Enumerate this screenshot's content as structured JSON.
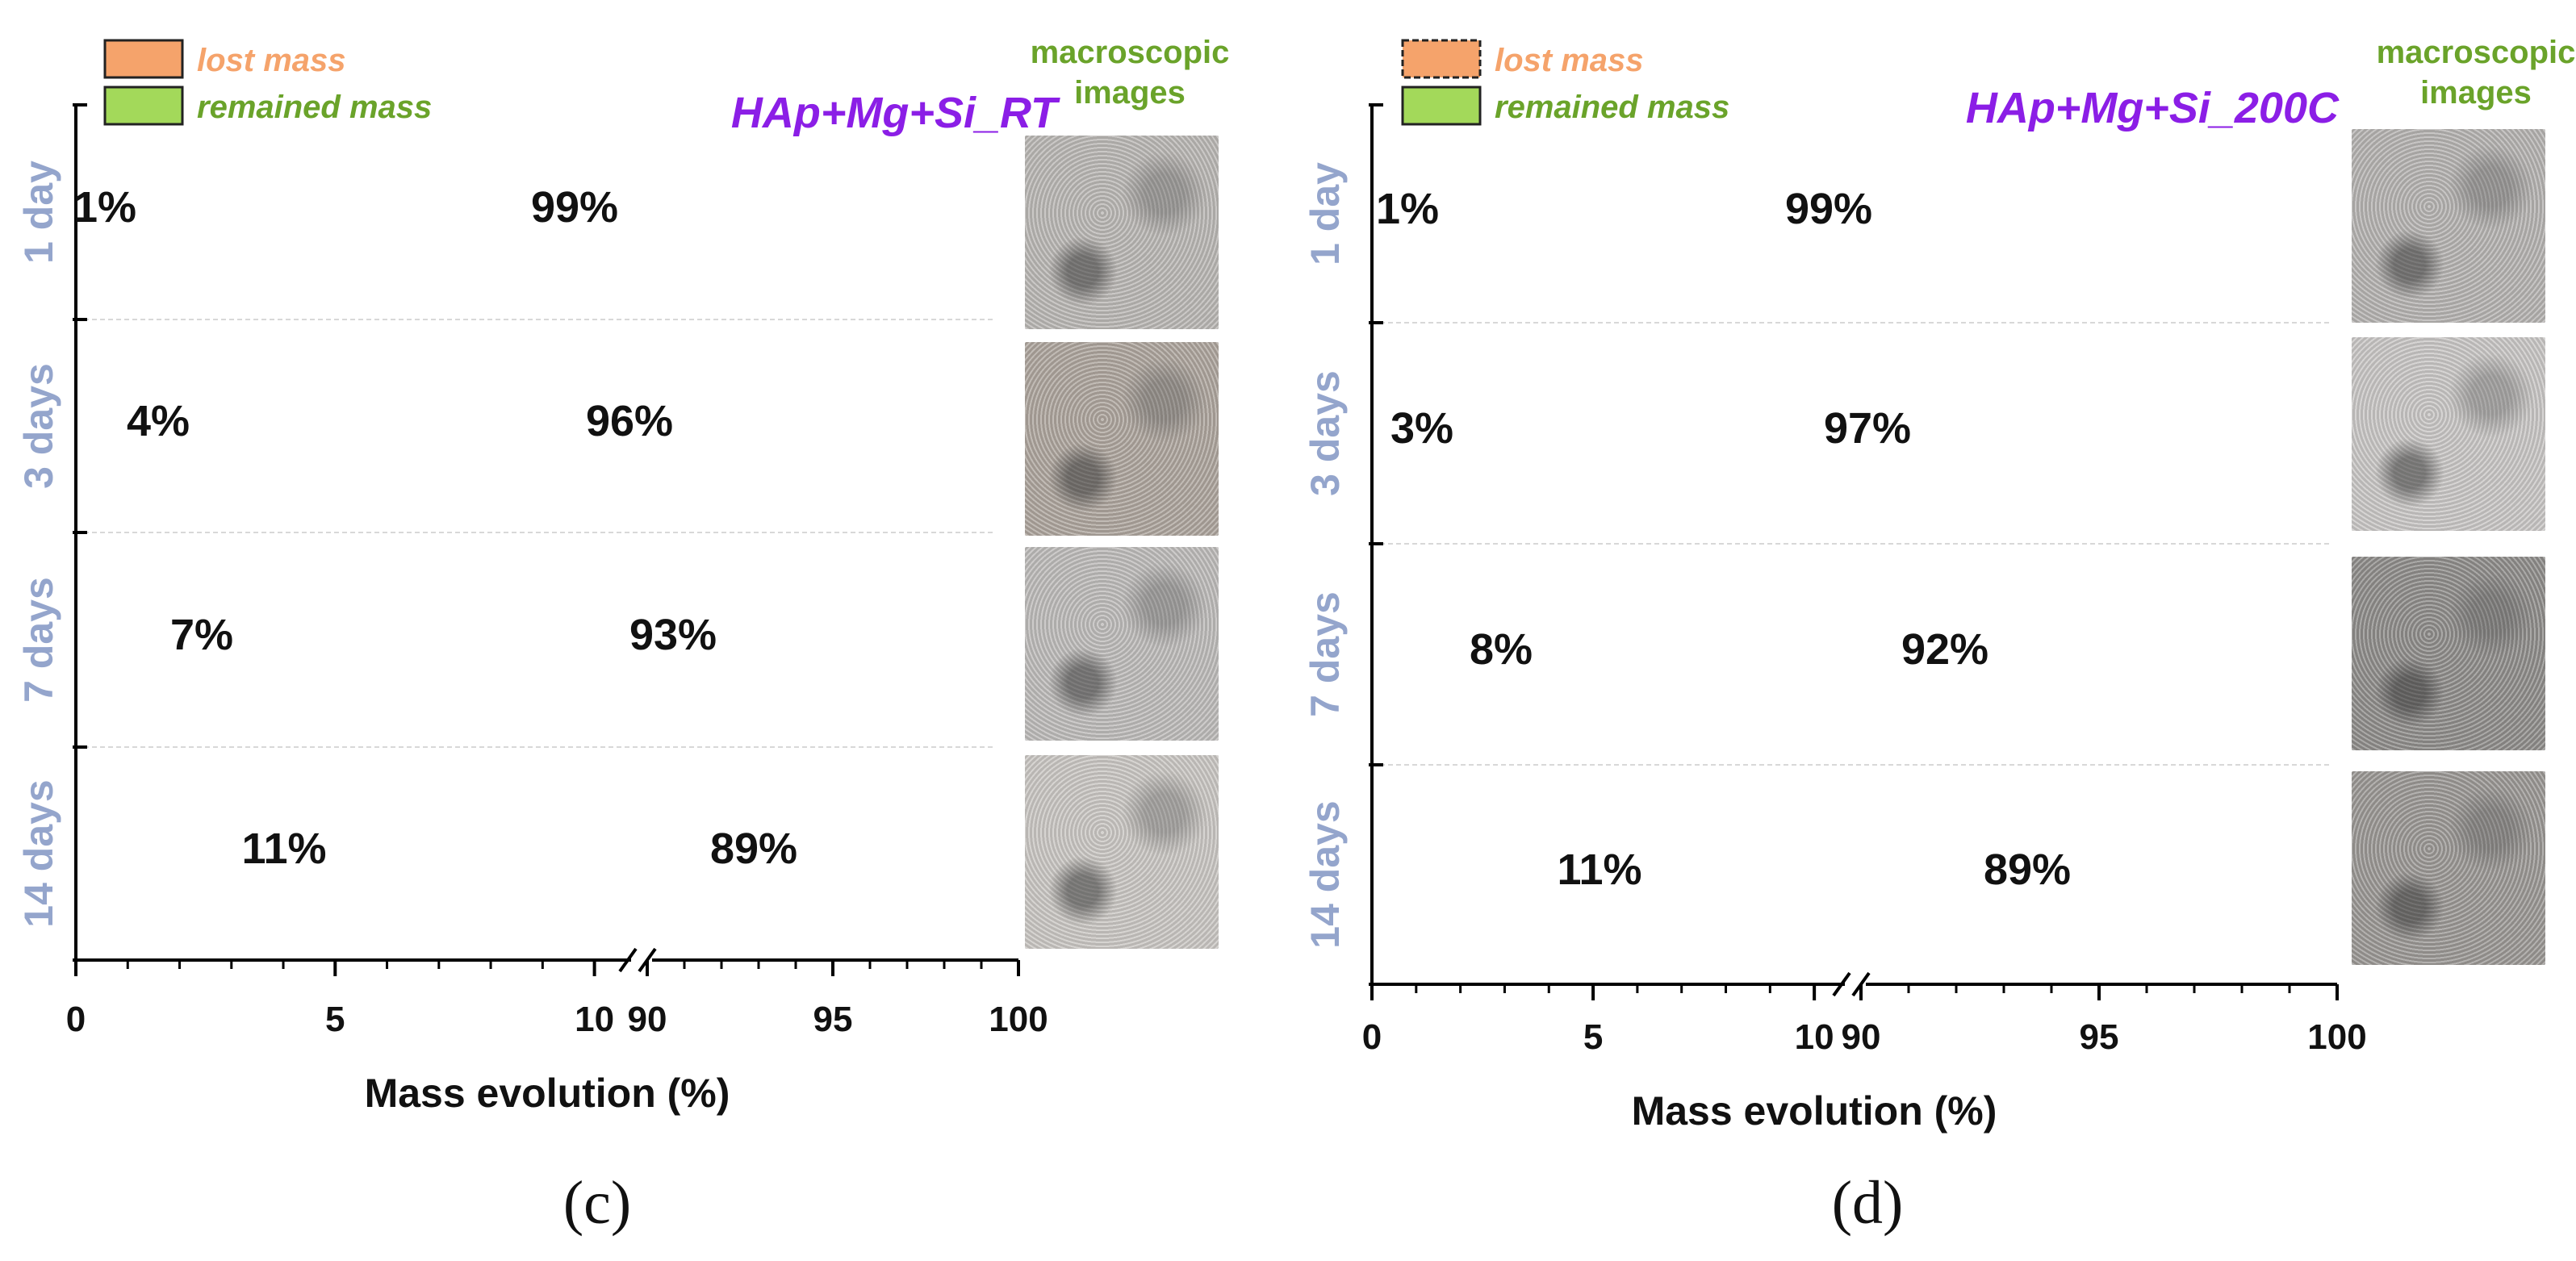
{
  "chart_data": [
    {
      "type": "bar",
      "orientation": "horizontal-stacked",
      "title": "HAp+Mg+Si_RT",
      "panel_label": "(c)",
      "xlabel": "Mass evolution (%)",
      "x_axis": {
        "break_from": 10.8,
        "break_to": 90,
        "segment1_range": [
          0,
          10.8
        ],
        "segment2_range": [
          90,
          100
        ],
        "tick_labels": [
          "0",
          "5",
          "10",
          "90",
          "95",
          "100"
        ],
        "tick_values": [
          0,
          5,
          10,
          90,
          95,
          100
        ]
      },
      "categories": [
        "1 day",
        "3 days",
        "7 days",
        "14 days"
      ],
      "series": [
        {
          "name": "lost mass",
          "color": "#f5a36b",
          "values": [
            1,
            4,
            7,
            11
          ],
          "labels": [
            "1%",
            "4%",
            "7%",
            "11%"
          ]
        },
        {
          "name": "remained mass",
          "color": "#a3d95a",
          "values": [
            99,
            96,
            93,
            89
          ],
          "labels": [
            "99%",
            "96%",
            "93%",
            "89%"
          ]
        }
      ],
      "images_caption": [
        "macroscopic",
        "images"
      ],
      "sample_tones": [
        "#b9b6b3",
        "#aca49c",
        "#bcbab8",
        "#c9c6c2"
      ]
    },
    {
      "type": "bar",
      "orientation": "horizontal-stacked",
      "title": "HAp+Mg+Si_200C",
      "panel_label": "(d)",
      "xlabel": "Mass evolution (%)",
      "x_axis": {
        "break_from": 10.8,
        "break_to": 90,
        "segment1_range": [
          0,
          10.8
        ],
        "segment2_range": [
          90,
          100
        ],
        "tick_labels": [
          "0",
          "5",
          "10",
          "90",
          "95",
          "100"
        ],
        "tick_values": [
          0,
          5,
          10,
          90,
          95,
          100
        ]
      },
      "categories": [
        "1 day",
        "3 days",
        "7 days",
        "14 days"
      ],
      "series": [
        {
          "name": "lost mass",
          "color": "#f5a36b",
          "values": [
            1,
            3,
            8,
            11
          ],
          "labels": [
            "1%",
            "3%",
            "8%",
            "11%"
          ]
        },
        {
          "name": "remained mass",
          "color": "#a3d95a",
          "values": [
            99,
            97,
            92,
            89
          ],
          "labels": [
            "99%",
            "97%",
            "92%",
            "89%"
          ]
        }
      ],
      "images_caption": [
        "macroscopic",
        "images"
      ],
      "sample_tones": [
        "#b4b2b0",
        "#c8c6c4",
        "#8e8c8a",
        "#9a9794"
      ]
    }
  ],
  "colors": {
    "title": "#8b1ee6",
    "category_label": "#94a5cc",
    "lost_label": "#f5a36b",
    "remained_label": "#6aa32a",
    "caption": "#6aa32a"
  }
}
